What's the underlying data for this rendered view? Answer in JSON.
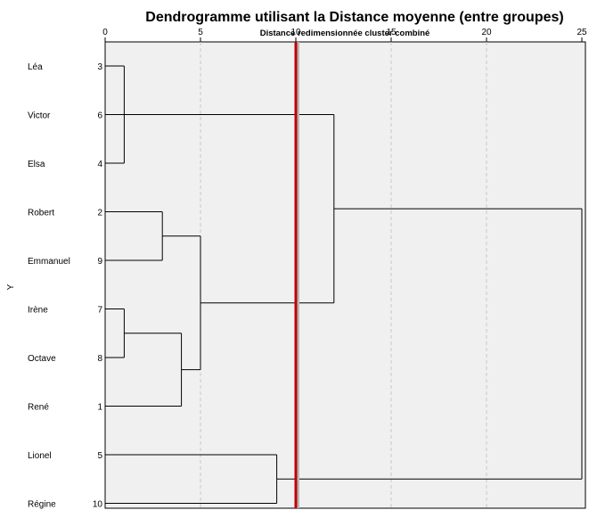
{
  "chart_data": {
    "type": "dendrogram",
    "title": "Dendrogramme utilisant la Distance moyenne (entre groupes)",
    "xlabel": "Distance redimensionnée cluster combiné",
    "ylabel": "Y",
    "xlim": [
      0,
      25
    ],
    "xticks": [
      0,
      5,
      10,
      15,
      20,
      25
    ],
    "grid": true,
    "leaves": [
      {
        "name": "Léa",
        "id": 3
      },
      {
        "name": "Victor",
        "id": 6
      },
      {
        "name": "Elsa",
        "id": 4
      },
      {
        "name": "Robert",
        "id": 2
      },
      {
        "name": "Emmanuel",
        "id": 9
      },
      {
        "name": "Irène",
        "id": 7
      },
      {
        "name": "Octave",
        "id": 8
      },
      {
        "name": "René",
        "id": 1
      },
      {
        "name": "Lionel",
        "id": 5
      },
      {
        "name": "Régine",
        "id": 10
      }
    ],
    "merges": [
      {
        "left": "L0",
        "right": "L2",
        "height": 1.0
      },
      {
        "left": "L5",
        "right": "L6",
        "height": 1.0
      },
      {
        "left": "L3",
        "right": "L4",
        "height": 3.0
      },
      {
        "left": "M1",
        "right": "L7",
        "height": 4.0
      },
      {
        "left": "M2",
        "right": "M3",
        "height": 5.0
      },
      {
        "left": "L8",
        "right": "L9",
        "height": 9.0
      },
      {
        "left": "L1",
        "right": "M0",
        "height": 1.0
      },
      {
        "left": "M6",
        "right": "M4",
        "height": 12.0
      },
      {
        "left": "M7",
        "right": "M5",
        "height": 25.0
      }
    ],
    "cut_line": {
      "x": 10,
      "color": "#c00000"
    }
  }
}
